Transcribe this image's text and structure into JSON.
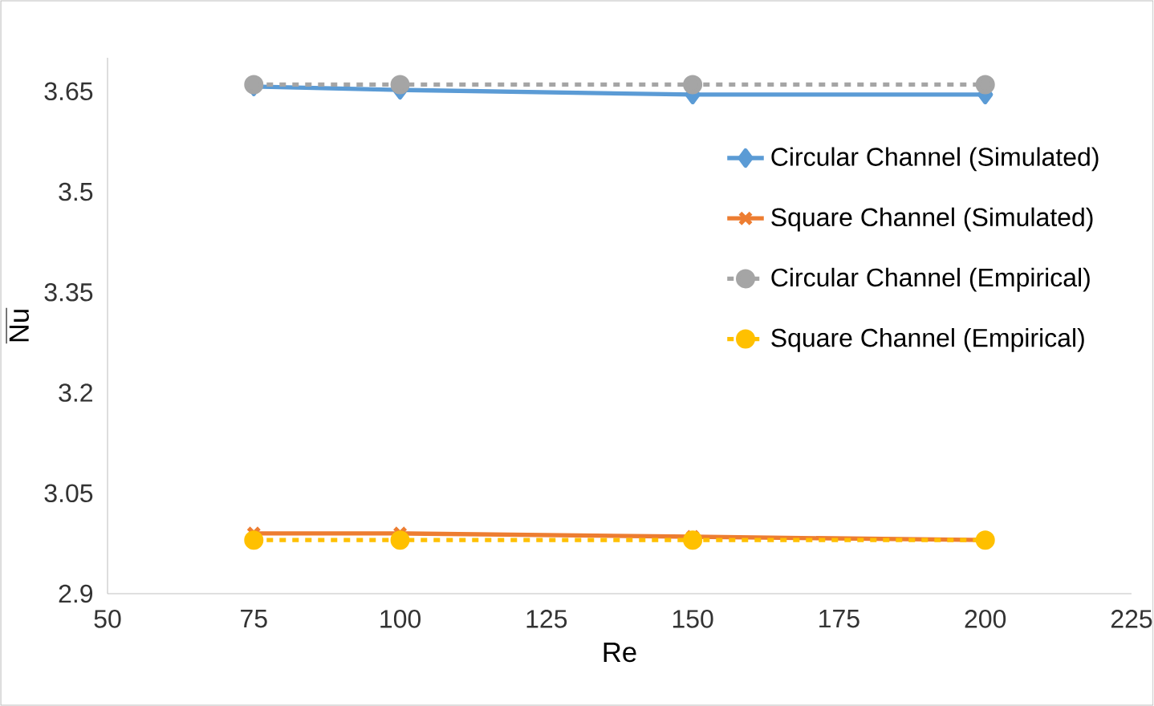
{
  "chart_data": {
    "type": "line",
    "xlabel": "Re",
    "ylabel": "\\overline{\\mathrm{Nu}}",
    "x": [
      75,
      100,
      150,
      200
    ],
    "series": [
      {
        "name": "Circular Channel (Simulated)",
        "color": "#5b9bd5",
        "marker": "diamond",
        "line_style": "solid",
        "values": [
          3.657,
          3.652,
          3.645,
          3.645
        ]
      },
      {
        "name": "Square Channel (Simulated)",
        "color": "#ed7d31",
        "marker": "cross",
        "line_style": "solid",
        "values": [
          2.99,
          2.99,
          2.985,
          2.98
        ]
      },
      {
        "name": "Circular Channel (Empirical)",
        "color": "#a5a5a5",
        "marker": "circle",
        "line_style": "dashed",
        "values": [
          3.66,
          3.66,
          3.66,
          3.66
        ]
      },
      {
        "name": "Square Channel (Empirical)",
        "color": "#ffc000",
        "marker": "circle",
        "line_style": "dashed",
        "values": [
          2.98,
          2.98,
          2.98,
          2.98
        ]
      }
    ],
    "xlim": [
      50,
      225
    ],
    "xticks": [
      50,
      75,
      100,
      125,
      150,
      175,
      200,
      225
    ],
    "ylim": [
      2.9,
      3.7
    ],
    "yticks": [
      2.9,
      3.05,
      3.2,
      3.35,
      3.5,
      3.65
    ],
    "grid": false,
    "legend": "right"
  }
}
